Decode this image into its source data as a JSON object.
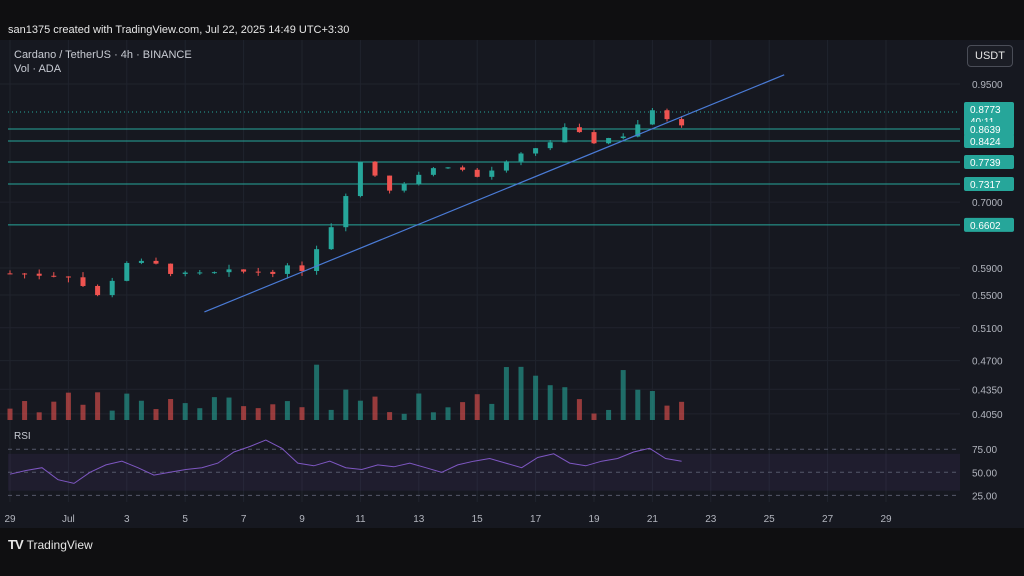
{
  "caption": "san1375 created with TradingView.com, Jul 22, 2025 14:49 UTC+3:30",
  "header": {
    "symbol_line": "Cardano / TetherUS · 4h · BINANCE",
    "volume_line": "Vol · ADA"
  },
  "currency_button": "USDT",
  "rsi_label": "RSI",
  "brand": {
    "logo": "TV",
    "name": "TradingView"
  },
  "colors": {
    "up": "#26a69a",
    "down": "#ef5350",
    "trendline": "#4a7bd6",
    "level": "#26a69a",
    "rsi": "#7e57c2",
    "background": "#161820"
  },
  "chart_data": [
    {
      "type": "candlestick",
      "title": "Cardano / TetherUS · 4h · BINANCE",
      "x_tick_labels": [
        "29",
        "Jul",
        "3",
        "5",
        "7",
        "9",
        "11",
        "13",
        "15",
        "17",
        "19",
        "21",
        "23",
        "25",
        "27",
        "29"
      ],
      "y_tick_labels": [
        "0.9500",
        "0.7000",
        "0.5900",
        "0.5500",
        "0.5100",
        "0.4700",
        "0.4350",
        "0.4050"
      ],
      "ylim": [
        0.4,
        0.98
      ],
      "price_badge": {
        "value": "0.8773",
        "countdown": "40:11"
      },
      "horizontal_levels": [
        "0.8639",
        "0.8424",
        "0.7739",
        "0.7317",
        "0.6602"
      ],
      "trendline": {
        "start": [
          "Jul 6",
          0.544
        ],
        "end": [
          "Jul 25",
          0.961
        ]
      },
      "series_approx": [
        {
          "date": "Jun 29",
          "close": 0.582
        },
        {
          "date": "Jul 1",
          "close": 0.58
        },
        {
          "date": "Jul 2",
          "close": 0.548
        },
        {
          "date": "Jul 3",
          "close": 0.6
        },
        {
          "date": "Jul 4",
          "close": 0.594
        },
        {
          "date": "Jul 5",
          "close": 0.578
        },
        {
          "date": "Jul 7",
          "close": 0.584
        },
        {
          "date": "Jul 9",
          "close": 0.59
        },
        {
          "date": "Jul 10",
          "close": 0.66
        },
        {
          "date": "Jul 11",
          "close": 0.775
        },
        {
          "date": "Jul 12",
          "close": 0.725
        },
        {
          "date": "Jul 13",
          "close": 0.75
        },
        {
          "date": "Jul 14",
          "close": 0.77
        },
        {
          "date": "Jul 15",
          "close": 0.745
        },
        {
          "date": "Jul 16",
          "close": 0.77
        },
        {
          "date": "Jul 17",
          "close": 0.82
        },
        {
          "date": "Jul 18",
          "close": 0.86
        },
        {
          "date": "Jul 19",
          "close": 0.84
        },
        {
          "date": "Jul 20",
          "close": 0.855
        },
        {
          "date": "Jul 21",
          "close": 0.89
        },
        {
          "date": "Jul 22",
          "close": 0.877
        }
      ]
    },
    {
      "type": "line",
      "name": "RSI",
      "y_tick_labels": [
        "75.00",
        "50.00",
        "25.00"
      ],
      "ylim": [
        20,
        85
      ],
      "band": [
        30,
        70
      ],
      "values_approx": [
        48,
        52,
        55,
        42,
        38,
        50,
        58,
        62,
        55,
        47,
        50,
        53,
        55,
        60,
        72,
        78,
        85,
        76,
        60,
        57,
        62,
        55,
        53,
        58,
        56,
        60,
        55,
        50,
        58,
        62,
        65,
        60,
        55,
        66,
        70,
        60,
        57,
        62,
        65,
        72,
        76,
        65,
        62
      ]
    }
  ]
}
